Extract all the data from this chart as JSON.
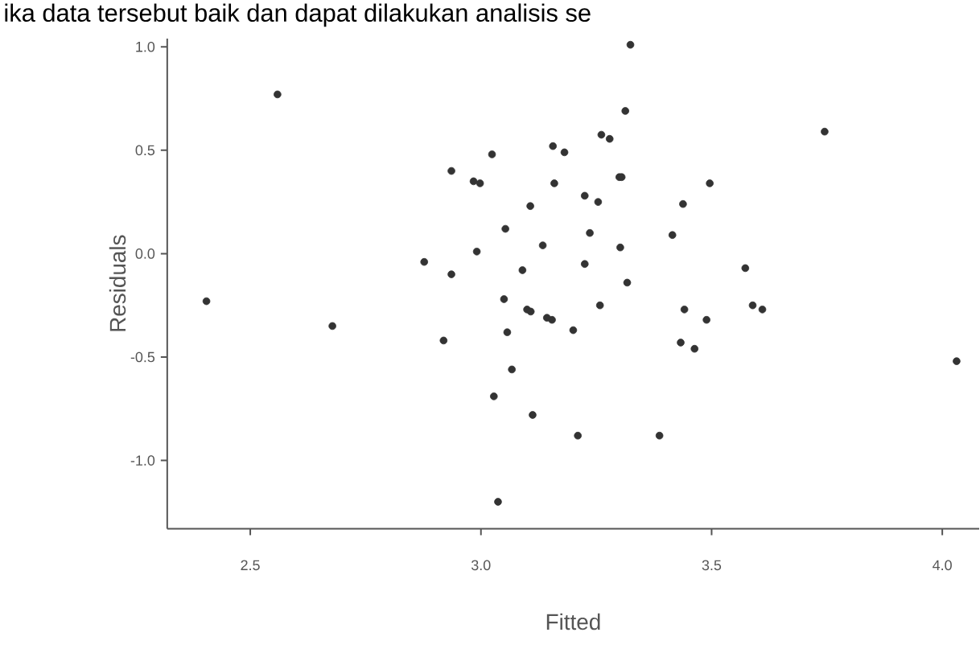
{
  "chart_data": {
    "type": "scatter",
    "xlabel": "Fitted",
    "ylabel": "Residuals",
    "annotations": [
      "ika data tersebut baik dan dapat dilakukan analisis se"
    ],
    "xlim": [
      2.32,
      4.08
    ],
    "ylim": [
      -1.33,
      1.04
    ],
    "xticks": [
      2.5,
      {
        "value": 3.0,
        "label": "3.0"
      },
      3.5,
      {
        "value": 4.0,
        "label": "4.0"
      }
    ],
    "yticks": [
      {
        "value": -1.0,
        "label": "-1.0"
      },
      -0.5,
      {
        "value": 0.0,
        "label": "0.0"
      },
      0.5,
      {
        "value": 1.0,
        "label": "1.0"
      }
    ],
    "grid": false,
    "marker": "circle",
    "series": [
      {
        "color": "#333333",
        "x": [
          2.405,
          2.559,
          2.678,
          2.877,
          2.936,
          2.936,
          2.919,
          2.984,
          2.998,
          2.991,
          3.024,
          3.028,
          3.037,
          3.05,
          3.053,
          3.057,
          3.067,
          3.09,
          3.1,
          3.108,
          3.107,
          3.112,
          3.134,
          3.143,
          3.154,
          3.156,
          3.159,
          3.324,
          3.313,
          3.181,
          3.261,
          3.279,
          3.225,
          3.254,
          3.3,
          3.305,
          3.236,
          3.225,
          3.302,
          3.317,
          3.258,
          3.2,
          3.21,
          3.387,
          3.438,
          3.496,
          3.415,
          3.441,
          3.489,
          3.433,
          3.463,
          3.573,
          3.589,
          3.61,
          3.745,
          4.031
        ],
        "values": [
          -0.23,
          0.77,
          -0.35,
          -0.04,
          0.4,
          -0.1,
          -0.42,
          0.35,
          0.34,
          0.01,
          0.48,
          -0.69,
          -1.2,
          -0.22,
          0.12,
          -0.38,
          -0.56,
          -0.08,
          -0.27,
          -0.28,
          0.23,
          -0.78,
          0.04,
          -0.31,
          -0.32,
          0.52,
          0.34,
          1.01,
          0.69,
          0.49,
          0.575,
          0.555,
          0.28,
          0.25,
          0.37,
          0.37,
          0.1,
          -0.05,
          0.03,
          -0.14,
          -0.25,
          -0.37,
          -0.88,
          -0.88,
          0.24,
          0.34,
          0.09,
          -0.27,
          -0.32,
          -0.43,
          -0.46,
          -0.07,
          -0.25,
          -0.27,
          0.59,
          -0.52
        ]
      }
    ]
  }
}
